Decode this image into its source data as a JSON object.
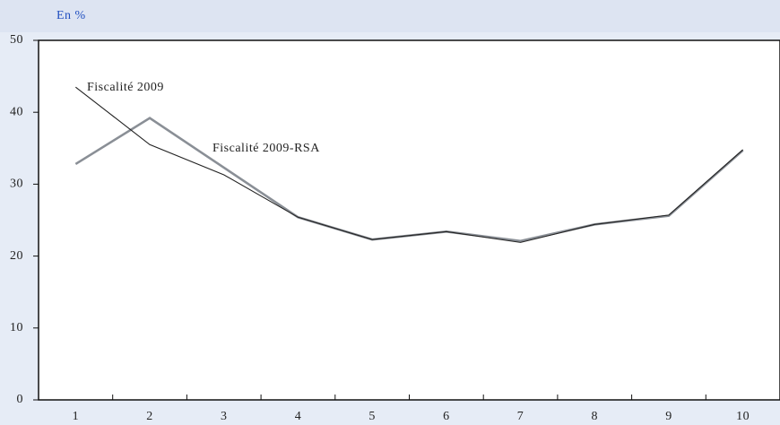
{
  "header": {
    "unit": "En %"
  },
  "chart_data": {
    "type": "line",
    "categories": [
      "1",
      "2",
      "3",
      "4",
      "5",
      "6",
      "7",
      "8",
      "9",
      "10"
    ],
    "series": [
      {
        "name": "Fiscalité 2009",
        "color": "#222222",
        "values": [
          43.5,
          35.5,
          31.3,
          25.4,
          22.3,
          23.4,
          21.9,
          24.4,
          25.7,
          34.8
        ]
      },
      {
        "name": "Fiscalité 2009-RSA",
        "color": "#8a8f96",
        "values": [
          32.8,
          39.2,
          32.3,
          25.4,
          22.3,
          23.4,
          22.1,
          24.4,
          25.6,
          34.7
        ]
      }
    ],
    "ylim": [
      0,
      50
    ],
    "yticks": [
      0,
      10,
      20,
      30,
      40,
      50
    ]
  }
}
